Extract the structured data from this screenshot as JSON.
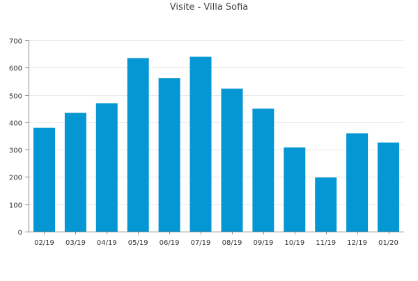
{
  "chart_data": {
    "type": "bar",
    "title": "Visite - Villa Sofia",
    "xlabel": "",
    "ylabel": "",
    "categories": [
      "02/19",
      "03/19",
      "04/19",
      "05/19",
      "06/19",
      "07/19",
      "08/19",
      "09/19",
      "10/19",
      "11/19",
      "12/19",
      "01/20"
    ],
    "values": [
      380,
      435,
      470,
      635,
      562,
      640,
      523,
      450,
      308,
      198,
      360,
      326
    ],
    "ylim": [
      0,
      700
    ],
    "yticks": [
      0,
      100,
      200,
      300,
      400,
      500,
      600,
      700
    ],
    "grid": true,
    "legend": "none",
    "colors": {
      "bar": "#0597d4",
      "grid": "#e6e6e6",
      "axis": "#888888",
      "text": "#333333",
      "title": "#444444"
    }
  }
}
